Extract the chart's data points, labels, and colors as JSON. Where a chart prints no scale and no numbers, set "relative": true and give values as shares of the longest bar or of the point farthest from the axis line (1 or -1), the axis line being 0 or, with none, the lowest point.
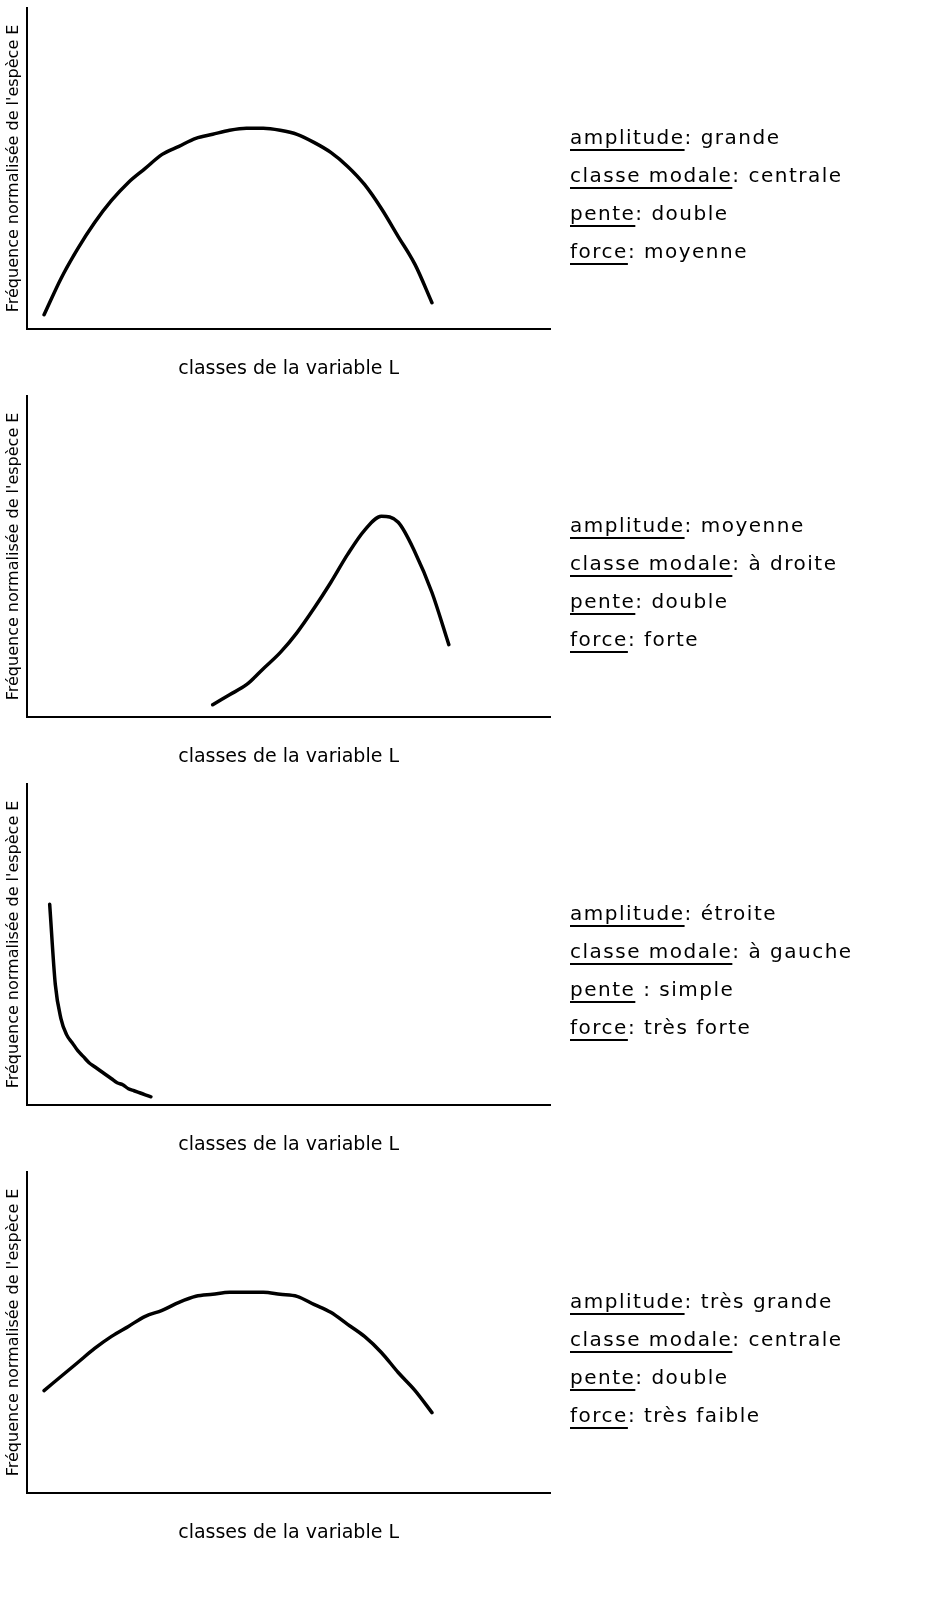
{
  "chart_data": [
    {
      "type": "line",
      "relative": true,
      "marker": "none",
      "xlabel": "classes de la variable L",
      "ylabel": "Fréquence normalisée de l'espèce E",
      "categories": [
        null,
        null,
        null,
        null,
        null,
        null,
        null,
        null,
        null,
        null,
        null,
        null,
        null,
        null,
        null,
        null,
        null,
        null,
        null,
        null,
        null,
        null,
        null,
        null,
        null,
        null,
        null,
        null,
        null,
        null,
        null,
        null
      ],
      "series": [
        {
          "color": "#000000",
          "values": [
            null,
            0.07,
            0.25,
            0.4,
            0.53,
            0.64,
            0.73,
            0.8,
            0.87,
            0.91,
            0.95,
            0.97,
            0.99,
            1,
            1,
            0.99,
            0.97,
            0.93,
            0.88,
            0.81,
            0.72,
            0.6,
            0.46,
            0.32,
            0.13,
            null,
            null,
            null,
            null,
            null,
            null,
            null
          ]
        }
      ],
      "annotations": [
        "amplitude: grande",
        "classe modale: centrale",
        "pente: double",
        "force: moyenne"
      ]
    },
    {
      "type": "line",
      "relative": true,
      "marker": "none",
      "xlabel": "classes de la variable L",
      "ylabel": "Fréquence normalisée de l'espèce E",
      "categories": [
        null,
        null,
        null,
        null,
        null,
        null,
        null,
        null,
        null,
        null,
        null,
        null,
        null,
        null,
        null,
        null,
        null,
        null,
        null,
        null,
        null,
        null,
        null,
        null,
        null,
        null,
        null,
        null,
        null,
        null,
        null,
        null
      ],
      "series": [
        {
          "color": "#000000",
          "values": [
            null,
            null,
            null,
            null,
            null,
            null,
            null,
            null,
            null,
            null,
            null,
            0.06,
            0.11,
            0.16,
            0.24,
            0.32,
            0.42,
            0.54,
            0.67,
            0.81,
            0.93,
            1,
            0.97,
            0.82,
            0.62,
            0.36,
            null,
            null,
            null,
            null,
            null,
            null
          ]
        }
      ],
      "annotations": [
        "amplitude: moyenne",
        "classe modale: à droite",
        "pente: double",
        "force: forte"
      ]
    },
    {
      "type": "line",
      "relative": true,
      "marker": "none",
      "xlabel": "classes de la variable L",
      "ylabel": "Fréquence normalisée de l'espèce E",
      "categories": [
        null,
        null,
        null,
        null,
        null,
        null,
        null,
        null,
        null,
        null,
        null,
        null,
        null,
        null,
        null,
        null,
        null,
        null,
        null,
        null,
        null,
        null,
        null,
        null,
        null,
        null,
        null,
        null,
        null,
        null,
        null,
        null,
        null,
        null,
        null,
        null,
        null,
        null,
        null,
        null,
        null,
        null,
        null,
        null,
        null,
        null,
        null,
        null,
        null,
        null,
        null,
        null,
        null,
        null,
        null,
        null,
        null,
        null,
        null,
        null,
        null,
        null,
        null,
        null,
        null,
        null,
        null,
        null,
        null,
        null,
        null,
        null,
        null,
        null,
        null,
        null,
        null,
        null,
        null,
        null,
        null,
        null,
        null,
        null,
        null,
        null,
        null,
        null,
        null,
        null,
        null,
        null,
        null,
        null
      ],
      "series": [
        {
          "color": "#000000",
          "values": [
            null,
            null,
            null,
            null,
            1,
            0.6,
            0.43,
            0.35,
            0.31,
            0.27,
            0.24,
            0.21,
            0.19,
            0.17,
            0.15,
            0.13,
            0.11,
            0.1,
            0.08,
            0.07,
            0.06,
            0.05,
            0.04,
            null,
            null,
            null,
            null,
            null,
            null,
            null,
            null,
            null,
            null,
            null,
            null,
            null,
            null,
            null,
            null,
            null,
            null,
            null,
            null,
            null,
            null,
            null,
            null,
            null,
            null,
            null,
            null,
            null,
            null,
            null,
            null,
            null,
            null,
            null,
            null,
            null,
            null,
            null,
            null,
            null,
            null,
            null,
            null,
            null,
            null,
            null,
            null,
            null,
            null,
            null,
            null,
            null,
            null,
            null,
            null,
            null,
            null,
            null,
            null,
            null,
            null,
            null,
            null,
            null,
            null,
            null,
            null,
            null,
            null,
            null
          ]
        }
      ],
      "annotations": [
        "amplitude: étroite",
        "classe modale: à gauche",
        "pente : simple",
        "force: très forte"
      ]
    },
    {
      "type": "line",
      "relative": true,
      "marker": "none",
      "xlabel": "classes de la variable L",
      "ylabel": "Fréquence normalisée de l'espèce E",
      "categories": [
        null,
        null,
        null,
        null,
        null,
        null,
        null,
        null,
        null,
        null,
        null,
        null,
        null,
        null,
        null,
        null,
        null,
        null,
        null,
        null,
        null,
        null,
        null,
        null,
        null,
        null,
        null,
        null,
        null,
        null,
        null,
        null
      ],
      "series": [
        {
          "color": "#000000",
          "values": [
            null,
            0.51,
            0.58,
            0.65,
            0.72,
            0.78,
            0.83,
            0.88,
            0.91,
            0.95,
            0.98,
            0.99,
            1,
            1,
            1,
            0.99,
            0.98,
            0.94,
            0.9,
            0.84,
            0.78,
            0.7,
            0.6,
            0.51,
            0.4,
            null,
            null,
            null,
            null,
            null,
            null,
            null
          ]
        }
      ],
      "annotations": [
        "amplitude: très grande",
        "classe modale: centrale",
        "pente: double",
        "force: très faible"
      ]
    }
  ]
}
